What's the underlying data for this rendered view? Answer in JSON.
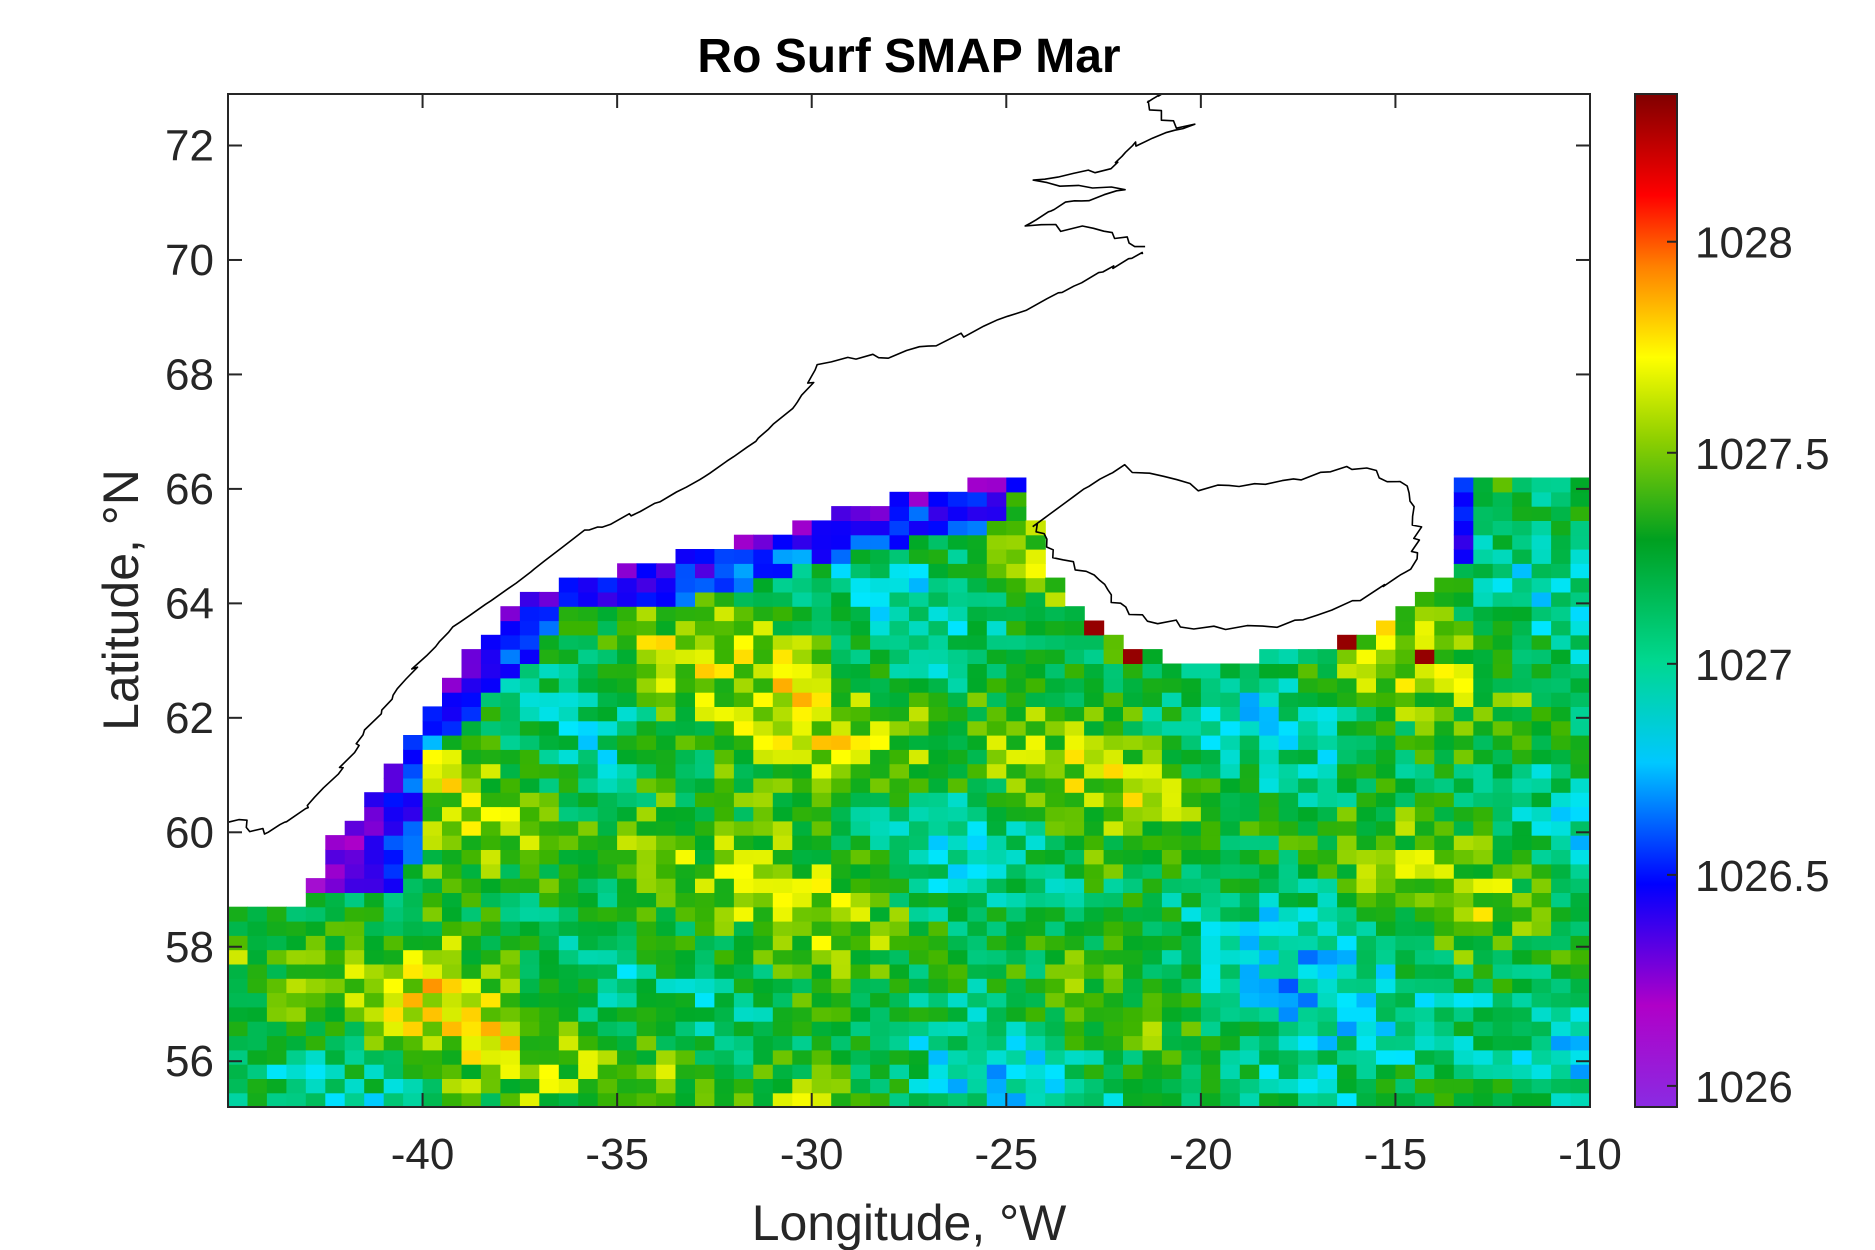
{
  "chart_data": {
    "type": "heatmap",
    "title": "Ro Surf SMAP Mar",
    "xlabel": "Longitude, °W",
    "ylabel": "Latitude, °N",
    "xlim": [
      -45,
      -10
    ],
    "ylim": [
      55.2,
      72.9
    ],
    "xticks": [
      -40,
      -35,
      -30,
      -25,
      -20,
      -15,
      -10
    ],
    "yticks": [
      56,
      58,
      60,
      62,
      64,
      66,
      68,
      70,
      72
    ],
    "xtick_labels": [
      "-40",
      "-35",
      "-30",
      "-25",
      "-20",
      "-15",
      "-10"
    ],
    "ytick_labels": [
      "56",
      "58",
      "60",
      "62",
      "64",
      "66",
      "68",
      "70",
      "72"
    ],
    "colorbar": {
      "min": 1025.95,
      "max": 1028.35,
      "ticks": [
        1026,
        1026.5,
        1027,
        1027.5,
        1028
      ],
      "tick_labels": [
        "1026",
        "1026.5",
        "1027",
        "1027.5",
        "1028"
      ],
      "colormap": "jet-like",
      "colors": [
        "#8a2be2",
        "#0000ff",
        "#00ffff",
        "#00b050",
        "#ffff00",
        "#ff0000",
        "#800000"
      ]
    },
    "grid": false,
    "field_summary": {
      "grid_resolution_deg": [
        0.5,
        0.25
      ],
      "typical_range": [
        1026.9,
        1027.9
      ],
      "coastal_fresh_band": "low values (~1026.0-1026.6) along SE Greenland shelf",
      "irminger_high_band": "high values (~1027.7-1027.9) near -34 and -29 to -27 lon",
      "iceland_south_coast_extremes": "very high values (~1028.3) near 63.5N"
    },
    "land": [
      "Greenland",
      "Iceland"
    ]
  }
}
